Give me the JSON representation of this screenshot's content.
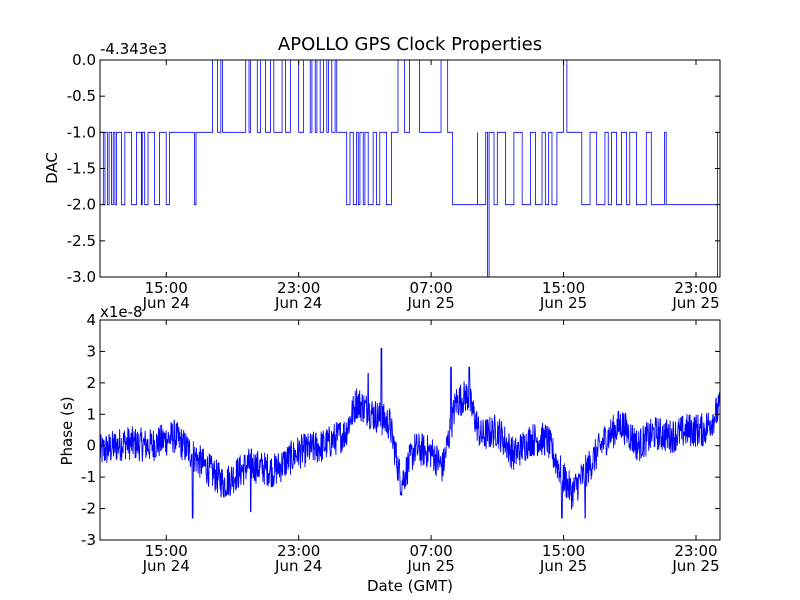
{
  "title": "APOLLO GPS Clock Properties",
  "xlabel": "Date (GMT)",
  "colors": {
    "line": "#0000ff",
    "axes": "#000000",
    "background": "#ffffff"
  },
  "chart_data": [
    {
      "type": "line",
      "name": "dac-chart",
      "ylabel": "DAC",
      "offset_text": "-4.343e3",
      "ylim": [
        -3.0,
        0.0
      ],
      "yticks": [
        0.0,
        -0.5,
        -1.0,
        -1.5,
        -2.0,
        -2.5,
        -3.0
      ],
      "ytick_labels": [
        "0.0",
        "-0.5",
        "-1.0",
        "-1.5",
        "-2.0",
        "-2.5",
        "-3.0"
      ],
      "xlim_hours": [
        11.0,
        48.45
      ],
      "xticks_hours": [
        15,
        23,
        31,
        39,
        47
      ],
      "xtick_labels": [
        [
          "15:00",
          "Jun 24"
        ],
        [
          "23:00",
          "Jun 24"
        ],
        [
          "07:00",
          "Jun 25"
        ],
        [
          "15:00",
          "Jun 25"
        ],
        [
          "23:00",
          "Jun 25"
        ]
      ],
      "grid": false,
      "series": [
        {
          "segments": [
            {
              "from": 11.0,
              "to": 16.8,
              "level": -1.0,
              "dips": [
                [
                  11.2,
                  11.3,
                  -2
                ],
                [
                  11.45,
                  11.55,
                  -2
                ],
                [
                  11.7,
                  11.8,
                  -2
                ],
                [
                  11.9,
                  12.0,
                  -2
                ],
                [
                  12.3,
                  12.5,
                  -2
                ],
                [
                  12.9,
                  13.2,
                  -2
                ],
                [
                  13.5,
                  13.55,
                  -2
                ],
                [
                  13.7,
                  13.9,
                  -2
                ],
                [
                  14.3,
                  14.6,
                  -2
                ],
                [
                  15.0,
                  15.2,
                  -2
                ],
                [
                  16.7,
                  16.8,
                  -2
                ]
              ]
            },
            {
              "from": 16.8,
              "to": 17.3,
              "level": -1.0,
              "dips": []
            },
            {
              "from": 17.3,
              "to": 25.8,
              "level": -1.0,
              "dips": [
                [
                  17.8,
                  18.1,
                  0
                ],
                [
                  18.3,
                  18.4,
                  0
                ],
                [
                  19.8,
                  20.0,
                  0
                ],
                [
                  20.1,
                  20.5,
                  0
                ],
                [
                  20.7,
                  21.0,
                  0
                ],
                [
                  21.3,
                  21.5,
                  0
                ],
                [
                  22.0,
                  22.2,
                  0
                ],
                [
                  22.5,
                  23.0,
                  0
                ],
                [
                  23.3,
                  23.7,
                  0
                ],
                [
                  23.8,
                  24.0,
                  0
                ],
                [
                  24.1,
                  24.3,
                  0
                ],
                [
                  24.5,
                  24.7,
                  0
                ],
                [
                  24.8,
                  25.0,
                  0
                ],
                [
                  25.2,
                  25.3,
                  0
                ]
              ]
            },
            {
              "from": 25.8,
              "to": 39.5,
              "level": -1.0,
              "dips": [
                [
                  25.9,
                  26.1,
                  -2
                ],
                [
                  26.3,
                  26.5,
                  -2
                ],
                [
                  26.6,
                  26.7,
                  -2
                ],
                [
                  26.9,
                  27.0,
                  -2
                ],
                [
                  27.2,
                  27.5,
                  -2
                ],
                [
                  27.7,
                  27.9,
                  -2
                ],
                [
                  28.3,
                  28.6,
                  -2
                ],
                [
                  29.0,
                  29.4,
                  0
                ],
                [
                  29.7,
                  30.3,
                  0
                ],
                [
                  31.6,
                  32.0,
                  0
                ],
                [
                  32.3,
                  33.8,
                  -2
                ],
                [
                  33.8,
                  34.3,
                  -2
                ],
                [
                  34.4,
                  34.5,
                  -3
                ],
                [
                  34.8,
                  35.0,
                  -2
                ],
                [
                  35.5,
                  36.0,
                  -2
                ],
                [
                  36.5,
                  37.0,
                  -2
                ],
                [
                  37.3,
                  37.7,
                  -2
                ],
                [
                  37.9,
                  38.1,
                  -2
                ],
                [
                  38.3,
                  38.6,
                  -2
                ],
                [
                  39.0,
                  39.2,
                  0
                ]
              ]
            },
            {
              "from": 39.5,
              "to": 48.45,
              "level": -1.0,
              "dips": [
                [
                  40.1,
                  40.6,
                  -2
                ],
                [
                  41.0,
                  41.5,
                  -2
                ],
                [
                  41.7,
                  41.9,
                  -2
                ],
                [
                  42.2,
                  42.5,
                  -2
                ],
                [
                  42.8,
                  43.0,
                  -2
                ],
                [
                  43.4,
                  44.0,
                  -2
                ],
                [
                  44.3,
                  45.1,
                  -2
                ],
                [
                  45.2,
                  48.3,
                  -2
                ],
                [
                  48.3,
                  48.45,
                  -3
                ]
              ]
            }
          ]
        }
      ]
    },
    {
      "type": "line",
      "name": "phase-chart",
      "ylabel": "Phase (s)",
      "offset_text": "x1e-8",
      "ylim": [
        -3,
        4
      ],
      "yticks": [
        4,
        3,
        2,
        1,
        0,
        -1,
        -2,
        -3
      ],
      "ytick_labels": [
        "4",
        "3",
        "2",
        "1",
        "0",
        "-1",
        "-2",
        "-3"
      ],
      "xlim_hours": [
        11.0,
        48.45
      ],
      "xticks_hours": [
        15,
        23,
        31,
        39,
        47
      ],
      "xtick_labels": [
        [
          "15:00",
          "Jun 24"
        ],
        [
          "23:00",
          "Jun 24"
        ],
        [
          "07:00",
          "Jun 25"
        ],
        [
          "15:00",
          "Jun 25"
        ],
        [
          "23:00",
          "Jun 25"
        ]
      ],
      "grid": false,
      "series": [
        {
          "trend_hours": [
            11.0,
            12.5,
            14.0,
            15.5,
            17.0,
            18.5,
            20.0,
            21.5,
            23.0,
            24.5,
            25.8,
            26.5,
            27.5,
            28.5,
            29.2,
            30.0,
            31.0,
            31.7,
            32.5,
            33.2,
            34.0,
            35.0,
            36.0,
            37.0,
            38.0,
            38.8,
            39.5,
            40.5,
            41.5,
            42.5,
            43.5,
            44.5,
            45.5,
            46.5,
            47.5,
            48.45
          ],
          "trend_values": [
            -0.2,
            0.1,
            0.0,
            0.3,
            -0.5,
            -1.2,
            -0.6,
            -0.8,
            -0.2,
            0.0,
            0.4,
            1.4,
            1.0,
            0.7,
            -1.2,
            -0.1,
            -0.2,
            -0.7,
            1.4,
            1.6,
            0.3,
            0.5,
            -0.3,
            0.2,
            0.2,
            -0.8,
            -1.5,
            -0.7,
            0.2,
            0.7,
            0.0,
            0.4,
            0.3,
            0.5,
            0.5,
            1.2
          ],
          "noise_amplitude": 0.55,
          "spikes": [
            [
              16.6,
              -2.3
            ],
            [
              27.2,
              2.3
            ],
            [
              28.0,
              3.1
            ],
            [
              32.2,
              2.5
            ],
            [
              33.3,
              2.5
            ],
            [
              38.9,
              -2.3
            ],
            [
              40.3,
              -2.3
            ],
            [
              20.1,
              -2.1
            ]
          ]
        }
      ]
    }
  ]
}
